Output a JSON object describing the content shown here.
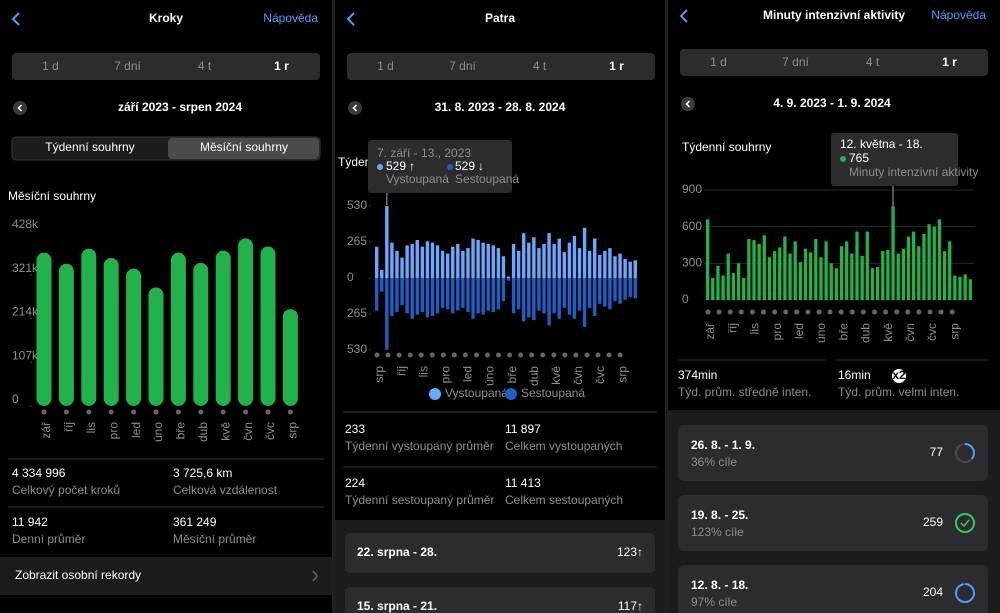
{
  "steps": {
    "title": "Kroky",
    "help": "Nápověda",
    "ranges": [
      "1 d",
      "7 dní",
      "4 t",
      "1 r"
    ],
    "period": "září 2023 - srpen 2024",
    "toggles": [
      "Týdenní souhrny",
      "Měsíční souhrny"
    ],
    "chart": {
      "type": "bar",
      "title": "Měsíční souhrny",
      "color": "#22b24c",
      "categories": [
        "zář",
        "říj",
        "lis",
        "pro",
        "led",
        "úno",
        "bře",
        "dub",
        "kvě",
        "čvn",
        "čvc",
        "srp"
      ],
      "values": [
        375000,
        348000,
        385000,
        362000,
        336000,
        290000,
        375000,
        350000,
        380000,
        410000,
        390000,
        237000
      ],
      "ylim": [
        0,
        428000
      ],
      "yticks": [
        0,
        {
          "value": 107000,
          "label": "107k"
        },
        {
          "value": 214000,
          "label": "214k"
        },
        {
          "value": 321000,
          "label": "321k"
        },
        {
          "value": 428000,
          "label": "428k"
        }
      ]
    },
    "stats": [
      {
        "value": "4 334 996",
        "label": "Celkový počet kroků"
      },
      {
        "value": "3 725,6 km",
        "label": "Celková vzdálenost"
      },
      {
        "value": "11 942",
        "label": "Denní průměr"
      },
      {
        "value": "361 249",
        "label": "Měsíční průměr"
      }
    ],
    "footer": "Zobrazit osobní rekordy"
  },
  "floors": {
    "title": "Patra",
    "ranges": [
      "1 d",
      "7 dní",
      "4 t",
      "1 r"
    ],
    "period": "31. 8. 2023 - 28. 8. 2024",
    "chart": {
      "type": "bar",
      "title": "Týdenní souhrny",
      "up_color": "#6aa8ff",
      "down_color": "#1f5fc4",
      "ylim": [
        0,
        530
      ],
      "up_ticks": [
        0,
        265,
        530
      ],
      "down_ticks": [
        265,
        530
      ],
      "months": [
        "srp",
        "říj",
        "lis",
        "pro",
        "led",
        "úno",
        "bře",
        "dub",
        "kvě",
        "čvn",
        "čvc",
        "srp"
      ],
      "up": [
        230,
        60,
        529,
        260,
        200,
        150,
        240,
        250,
        280,
        230,
        270,
        260,
        240,
        200,
        180,
        230,
        250,
        200,
        220,
        290,
        280,
        260,
        250,
        240,
        220,
        160,
        10,
        250,
        200,
        330,
        260,
        300,
        220,
        250,
        330,
        250,
        290,
        190,
        260,
        310,
        220,
        370,
        200,
        290,
        170,
        200,
        220,
        160,
        180,
        140,
        120,
        130
      ],
      "down": [
        240,
        100,
        529,
        280,
        250,
        200,
        260,
        300,
        270,
        250,
        290,
        280,
        260,
        220,
        230,
        260,
        240,
        220,
        250,
        300,
        260,
        270,
        240,
        250,
        230,
        170,
        20,
        260,
        230,
        320,
        290,
        310,
        240,
        260,
        350,
        260,
        300,
        220,
        270,
        300,
        240,
        360,
        220,
        280,
        190,
        210,
        230,
        170,
        190,
        160,
        140,
        150
      ],
      "legend": [
        "Vystoupaná",
        "Sestoupaná"
      ],
      "tooltip": {
        "date": "7. září - 13., 2023",
        "up": 529,
        "up_arrow": "↑",
        "up_label": "Vystoupaná",
        "down": 529,
        "down_arrow": "↓",
        "down_label": "Sestoupaná"
      }
    },
    "stats": [
      {
        "value": "233",
        "label": "Týdenní vystoupaný průměr"
      },
      {
        "value": "11 897",
        "label": "Celkem vystoupaných"
      },
      {
        "value": "224",
        "label": "Týdenní sestoupaný průměr"
      },
      {
        "value": "11 413",
        "label": "Celkem sestoupaných"
      }
    ],
    "list": [
      {
        "range": "22. srpna - 28.",
        "value": "123↑"
      },
      {
        "range": "15. srpna - 21.",
        "value": "117↑"
      }
    ]
  },
  "intensity": {
    "title": "Minuty intenzivní aktivity",
    "help": "Nápověda",
    "ranges": [
      "1 d",
      "7 dní",
      "4 t",
      "1 r"
    ],
    "period": "4. 9. 2023 - 1. 9. 2024",
    "chart": {
      "type": "bar",
      "title": "Týdenní souhrny",
      "color": "#22b24c",
      "ylim": [
        0,
        900
      ],
      "yticks": [
        0,
        300,
        600,
        900
      ],
      "months": [
        "zář",
        "říj",
        "lis",
        "pro",
        "led",
        "úno",
        "bře",
        "dub",
        "kvě",
        "čvn",
        "čvc",
        "srp"
      ],
      "values": [
        660,
        180,
        280,
        200,
        380,
        220,
        300,
        180,
        500,
        490,
        460,
        530,
        350,
        400,
        430,
        520,
        380,
        480,
        310,
        420,
        390,
        500,
        350,
        480,
        300,
        260,
        440,
        480,
        380,
        560,
        360,
        560,
        260,
        270,
        400,
        410,
        765,
        380,
        420,
        520,
        560,
        440,
        540,
        620,
        600,
        660,
        400,
        480,
        200,
        190,
        210,
        170
      ],
      "tooltip": {
        "date": "12. května - 18.",
        "value": 765,
        "label": "Minuty intenzivní aktivity"
      }
    },
    "stats": [
      {
        "value": "374min",
        "label": "Týd. prům. středně inten."
      },
      {
        "value": "16min",
        "badge": "x2",
        "label": "Týd. prům. velmi inten."
      }
    ],
    "list": [
      {
        "range": "26. 8. - 1. 9.",
        "pct_label": "36% cíle",
        "pct": 36,
        "value": 77
      },
      {
        "range": "19. 8. - 25.",
        "pct_label": "123% cíle",
        "pct": 123,
        "value": 259
      },
      {
        "range": "12. 8. - 18.",
        "pct_label": "97% cíle",
        "pct": 97,
        "value": 204
      }
    ]
  }
}
